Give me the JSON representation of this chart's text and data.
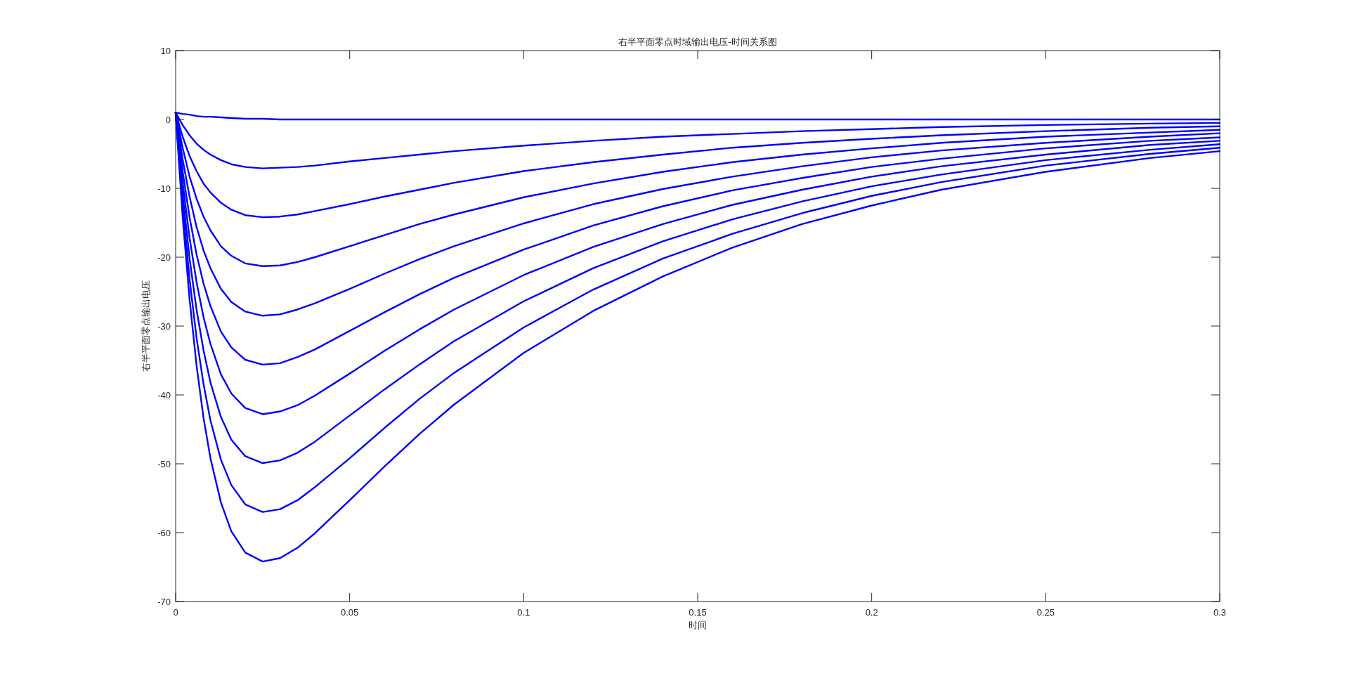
{
  "chart_data": {
    "type": "line",
    "title": "右半平面零点时域输出电压-时间关系图",
    "xlabel": "时间",
    "ylabel": "右半平面零点输出电压",
    "x": [
      0,
      0.002,
      0.004,
      0.006,
      0.008,
      0.01,
      0.013,
      0.016,
      0.02,
      0.025,
      0.03,
      0.035,
      0.04,
      0.05,
      0.06,
      0.07,
      0.08,
      0.1,
      0.12,
      0.14,
      0.16,
      0.18,
      0.2,
      0.22,
      0.25,
      0.28,
      0.3
    ],
    "series": [
      {
        "color": "#0000ff",
        "values": [
          1,
          0.8,
          0.7,
          0.5,
          0.4,
          0.4,
          0.3,
          0.2,
          0.1,
          0.1,
          0,
          0,
          0,
          0,
          0,
          0,
          0,
          0,
          0,
          0,
          0,
          0,
          0,
          0,
          0,
          0,
          0
        ]
      },
      {
        "color": "#0000ff",
        "values": [
          1,
          -0.8,
          -2.3,
          -3.5,
          -4.4,
          -5.1,
          -5.9,
          -6.5,
          -6.9,
          -7.1,
          -7.0,
          -6.9,
          -6.7,
          -6.1,
          -5.6,
          -5.1,
          -4.6,
          -3.8,
          -3.1,
          -2.5,
          -2.1,
          -1.7,
          -1.4,
          -1.1,
          -0.8,
          -0.6,
          -0.5
        ]
      },
      {
        "color": "#0000ff",
        "values": [
          1,
          -2.5,
          -5.3,
          -7.5,
          -9.3,
          -10.6,
          -12.1,
          -13.1,
          -13.9,
          -14.2,
          -14.1,
          -13.8,
          -13.3,
          -12.3,
          -11.2,
          -10.2,
          -9.2,
          -7.5,
          -6.2,
          -5.1,
          -4.1,
          -3.4,
          -2.8,
          -2.3,
          -1.7,
          -1.2,
          -1.0
        ]
      },
      {
        "color": "#0000ff",
        "values": [
          1,
          -4.1,
          -8.3,
          -11.5,
          -14.1,
          -16.1,
          -18.4,
          -19.8,
          -20.9,
          -21.3,
          -21.2,
          -20.7,
          -20.0,
          -18.4,
          -16.8,
          -15.2,
          -13.8,
          -11.3,
          -9.3,
          -7.6,
          -6.2,
          -5.1,
          -4.2,
          -3.4,
          -2.5,
          -1.9,
          -1.5
        ]
      },
      {
        "color": "#0000ff",
        "values": [
          1,
          -5.8,
          -11.2,
          -15.6,
          -19.0,
          -21.6,
          -24.6,
          -26.5,
          -27.9,
          -28.5,
          -28.3,
          -27.6,
          -26.7,
          -24.6,
          -22.4,
          -20.3,
          -18.4,
          -15.1,
          -12.3,
          -10.1,
          -8.3,
          -6.8,
          -5.5,
          -4.5,
          -3.4,
          -2.5,
          -2.0
        ]
      },
      {
        "color": "#0000ff",
        "values": [
          1,
          -7.5,
          -14.2,
          -19.6,
          -23.8,
          -27.1,
          -30.8,
          -33.1,
          -34.9,
          -35.6,
          -35.4,
          -34.5,
          -33.4,
          -30.7,
          -28.0,
          -25.4,
          -23.0,
          -18.9,
          -15.4,
          -12.6,
          -10.3,
          -8.5,
          -6.9,
          -5.7,
          -4.2,
          -3.1,
          -2.6
        ]
      },
      {
        "color": "#0000ff",
        "values": [
          1,
          -9.1,
          -17.2,
          -23.6,
          -28.7,
          -32.6,
          -37.0,
          -39.8,
          -41.9,
          -42.8,
          -42.4,
          -41.5,
          -40.1,
          -36.9,
          -33.6,
          -30.5,
          -27.6,
          -22.6,
          -18.5,
          -15.2,
          -12.4,
          -10.2,
          -8.3,
          -6.8,
          -5.1,
          -3.7,
          -3.1
        ]
      },
      {
        "color": "#0000ff",
        "values": [
          1,
          -10.8,
          -20.2,
          -27.6,
          -33.5,
          -38.2,
          -43.2,
          -46.5,
          -48.9,
          -49.9,
          -49.5,
          -48.4,
          -46.8,
          -43.0,
          -39.2,
          -35.6,
          -32.2,
          -26.4,
          -21.6,
          -17.7,
          -14.5,
          -11.9,
          -9.7,
          -8.0,
          -5.9,
          -4.4,
          -3.6
        ]
      },
      {
        "color": "#0000ff",
        "values": [
          1,
          -12.4,
          -23.2,
          -31.7,
          -38.4,
          -43.7,
          -49.4,
          -53.1,
          -55.9,
          -57.0,
          -56.6,
          -55.3,
          -53.4,
          -49.2,
          -44.8,
          -40.6,
          -36.8,
          -30.2,
          -24.7,
          -20.2,
          -16.6,
          -13.6,
          -11.1,
          -9.1,
          -6.7,
          -5.0,
          -4.1
        ]
      },
      {
        "color": "#0000ff",
        "values": [
          1,
          -14.1,
          -26.1,
          -35.7,
          -43.3,
          -49.2,
          -55.6,
          -59.8,
          -62.9,
          -64.2,
          -63.7,
          -62.2,
          -60.1,
          -55.3,
          -50.4,
          -45.7,
          -41.4,
          -33.9,
          -27.8,
          -22.8,
          -18.6,
          -15.2,
          -12.5,
          -10.2,
          -7.6,
          -5.6,
          -4.6
        ]
      }
    ],
    "xlim": [
      0,
      0.3
    ],
    "ylim": [
      -70,
      10
    ],
    "xticks": [
      0,
      0.05,
      0.1,
      0.15,
      0.2,
      0.25,
      0.3
    ],
    "yticks": [
      -70,
      -60,
      -50,
      -40,
      -30,
      -20,
      -10,
      0,
      10
    ]
  }
}
